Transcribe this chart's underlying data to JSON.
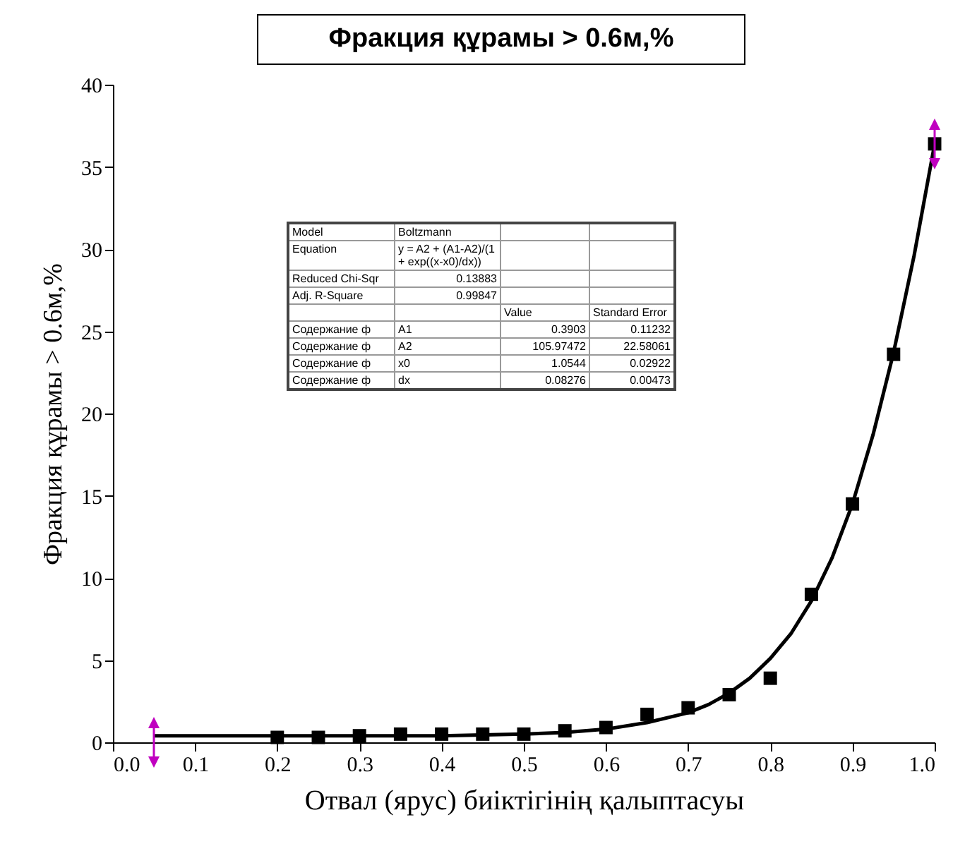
{
  "chart_data": {
    "type": "scatter",
    "title": "Фракция құрамы > 0.6м,%",
    "xlabel": "Отвал (ярус) биіктігінің қалыптасуы",
    "ylabel": "Фракция құрамы > 0.6м,%",
    "xlim": [
      0,
      1
    ],
    "xticks": [
      {
        "value": 0,
        "label": "0.0"
      },
      {
        "value": 0.1,
        "label": "0.1"
      },
      {
        "value": 0.2,
        "label": "0.2"
      },
      {
        "value": 0.3,
        "label": "0.3"
      },
      {
        "value": 0.4,
        "label": "0.4"
      },
      {
        "value": 0.5,
        "label": "0.5"
      },
      {
        "value": 0.6,
        "label": "0.6"
      },
      {
        "value": 0.7,
        "label": "0.7"
      },
      {
        "value": 0.8,
        "label": "0.8"
      },
      {
        "value": 0.9,
        "label": "0.9"
      },
      {
        "value": 1,
        "label": "1.0"
      }
    ],
    "ylim": [
      0,
      40
    ],
    "yticks": [
      0,
      5,
      10,
      15,
      20,
      25,
      30,
      35,
      40
    ],
    "grid": false,
    "series": [
      {
        "marker": "square",
        "color": "#000000",
        "x": [
          0.2,
          0.25,
          0.3,
          0.35,
          0.4,
          0.45,
          0.5,
          0.55,
          0.6,
          0.65,
          0.7,
          0.75,
          0.8,
          0.85,
          0.9,
          0.95,
          1.0
        ],
        "values": [
          0.3,
          0.3,
          0.4,
          0.5,
          0.5,
          0.5,
          0.5,
          0.7,
          0.9,
          1.7,
          2.1,
          2.9,
          3.9,
          9.0,
          14.5,
          23.6,
          36.4
        ]
      },
      {
        "type": "line",
        "marker": "none",
        "line_style": "solid",
        "color": "#000000",
        "x": [
          0.05,
          0.3,
          0.4,
          0.5,
          0.55,
          0.6,
          0.65,
          0.7,
          0.725,
          0.75,
          0.775,
          0.8,
          0.825,
          0.85,
          0.875,
          0.9,
          0.925,
          0.95,
          0.975,
          1.0
        ],
        "values": [
          0.4,
          0.4,
          0.4,
          0.5,
          0.6,
          0.8,
          1.2,
          1.8,
          2.3,
          3.0,
          3.9,
          5.1,
          6.6,
          8.6,
          11.2,
          14.5,
          18.7,
          23.7,
          29.6,
          36.4
        ]
      }
    ],
    "annotations": [
      "Model",
      "Boltzmann",
      "Equation",
      "y = A2 + (A1-A2)/(1 + exp((x-x0)/dx))",
      "Reduced Chi-Sqr",
      "0.13883",
      "Adj. R-Square",
      "0.99847",
      "Value",
      "Standard Error",
      "Содержание ф",
      "A1",
      "0.3903",
      "0.11232",
      "Содержание ф",
      "A2",
      "105.97472",
      "22.58061",
      "Содержание ф",
      "x0",
      "1.0544",
      "0.02922",
      "Содержание ф",
      "dx",
      "0.08276",
      "0.00473"
    ]
  }
}
